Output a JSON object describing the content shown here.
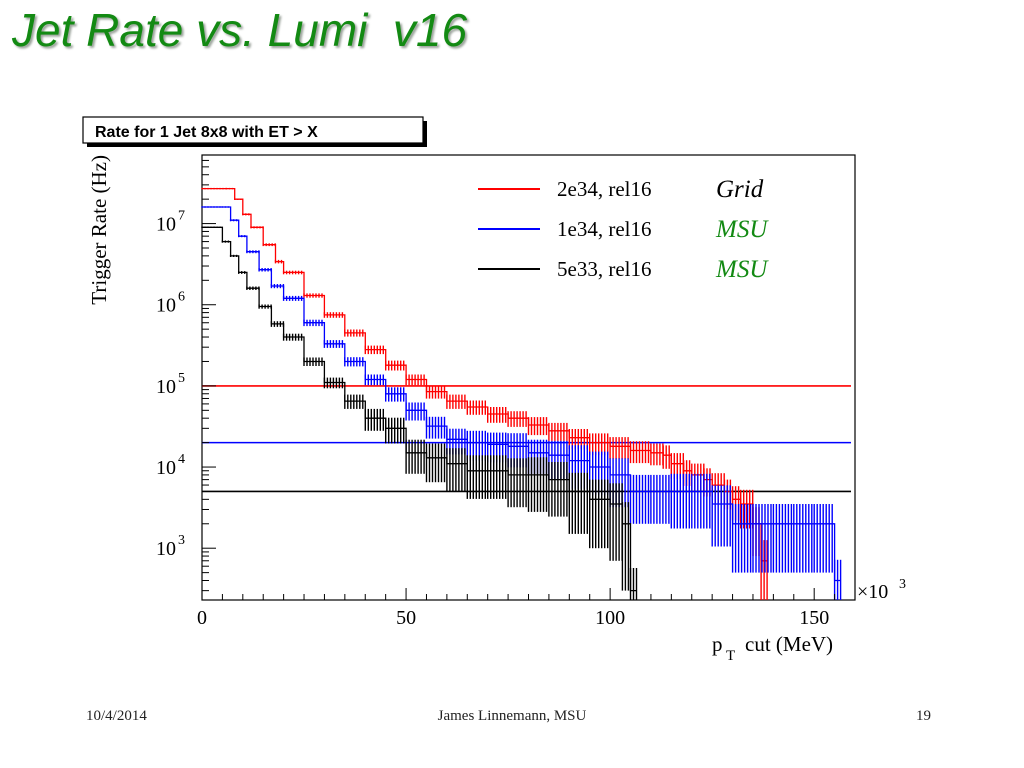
{
  "slide": {
    "title": "Jet Rate vs. Lumi  v16",
    "footer_date": "10/4/2014",
    "footer_author": "James Linnemann, MSU",
    "page_number": "19"
  },
  "chart_data": {
    "type": "line",
    "title": "Rate for 1 Jet 8x8 with ET > X",
    "xlabel": "cut (MeV)",
    "xlabel_symbol": "p",
    "xlabel_subscript": "T",
    "x_multiplier": "×10",
    "x_multiplier_exp": "3",
    "ylabel": "Trigger Rate (Hz)",
    "ylog": true,
    "xlim": [
      0,
      160
    ],
    "ylim": [
      230,
      70000000
    ],
    "xticks": [
      0,
      50,
      100,
      150
    ],
    "ytick_exponents": [
      3,
      4,
      5,
      6,
      7
    ],
    "ytick_base": "10",
    "grid": false,
    "legend_position": "top-right",
    "series": [
      {
        "name": "2e34, rel16",
        "annotation": "Grid",
        "color": "#ff0000",
        "annotation_color": "#000000",
        "threshold": 100000,
        "x": [
          0,
          6,
          8,
          10,
          12,
          15,
          18,
          20,
          25,
          30,
          35,
          40,
          45,
          50,
          55,
          60,
          65,
          70,
          75,
          80,
          85,
          90,
          95,
          100,
          105,
          110,
          113,
          115,
          118,
          120,
          123,
          125,
          128,
          130,
          132,
          135,
          137
        ],
        "y": [
          27000000,
          27000000,
          20000000,
          13000000,
          9000000,
          5500000,
          3400000,
          2500000,
          1300000,
          750000,
          450000,
          280000,
          180000,
          120000,
          85000,
          65000,
          55000,
          45000,
          40000,
          33000,
          28000,
          23000,
          20000,
          18000,
          16000,
          15000,
          14000,
          11000,
          9000,
          8000,
          7000,
          6000,
          5000,
          4000,
          3500,
          2000,
          700
        ],
        "err_frac": [
          0.02,
          0.02,
          0.02,
          0.03,
          0.03,
          0.04,
          0.05,
          0.05,
          0.06,
          0.08,
          0.1,
          0.12,
          0.14,
          0.15,
          0.18,
          0.2,
          0.2,
          0.22,
          0.22,
          0.25,
          0.25,
          0.28,
          0.3,
          0.3,
          0.3,
          0.3,
          0.32,
          0.35,
          0.35,
          0.38,
          0.38,
          0.4,
          0.4,
          0.45,
          0.5,
          0.6,
          0.8
        ]
      },
      {
        "name": "1e34, rel16",
        "annotation": "MSU",
        "color": "#0000ff",
        "annotation_color": "#138a13",
        "threshold": 20000,
        "x": [
          0,
          5,
          7,
          9,
          11,
          14,
          17,
          20,
          25,
          30,
          35,
          40,
          45,
          50,
          55,
          60,
          65,
          70,
          75,
          80,
          85,
          90,
          95,
          100,
          105,
          110,
          115,
          120,
          125,
          130,
          135,
          140,
          145,
          150,
          155
        ],
        "y": [
          16000000,
          16000000,
          11000000,
          7000000,
          4500000,
          2700000,
          1700000,
          1200000,
          600000,
          330000,
          200000,
          120000,
          80000,
          50000,
          32000,
          22000,
          20000,
          19000,
          18000,
          15000,
          14000,
          12000,
          10000,
          8000,
          5000,
          5000,
          5000,
          5000,
          3500,
          2000,
          2000,
          2000,
          2000,
          2000,
          400
        ],
        "err_frac": [
          0.02,
          0.02,
          0.03,
          0.03,
          0.04,
          0.05,
          0.06,
          0.07,
          0.09,
          0.11,
          0.13,
          0.15,
          0.2,
          0.25,
          0.3,
          0.35,
          0.4,
          0.4,
          0.45,
          0.45,
          0.5,
          0.55,
          0.55,
          0.6,
          0.6,
          0.6,
          0.65,
          0.65,
          0.7,
          0.75,
          0.75,
          0.75,
          0.75,
          0.75,
          0.8
        ]
      },
      {
        "name": "5e33, rel16",
        "annotation": "MSU",
        "color": "#000000",
        "annotation_color": "#138a13",
        "threshold": 5000,
        "x": [
          0,
          3,
          5,
          7,
          9,
          11,
          14,
          17,
          20,
          25,
          30,
          35,
          40,
          45,
          50,
          55,
          60,
          65,
          70,
          75,
          80,
          85,
          90,
          95,
          100,
          103,
          105
        ],
        "y": [
          9000000,
          9000000,
          6000000,
          4000000,
          2500000,
          1600000,
          950000,
          580000,
          400000,
          200000,
          110000,
          65000,
          40000,
          30000,
          15000,
          13000,
          11000,
          9000,
          9000,
          8000,
          8000,
          7000,
          5000,
          4000,
          3500,
          2000,
          300
        ],
        "err_frac": [
          0.02,
          0.02,
          0.03,
          0.03,
          0.04,
          0.05,
          0.06,
          0.08,
          0.1,
          0.12,
          0.15,
          0.2,
          0.3,
          0.35,
          0.45,
          0.5,
          0.55,
          0.55,
          0.55,
          0.6,
          0.65,
          0.65,
          0.7,
          0.75,
          0.8,
          0.85,
          0.9
        ]
      }
    ]
  }
}
